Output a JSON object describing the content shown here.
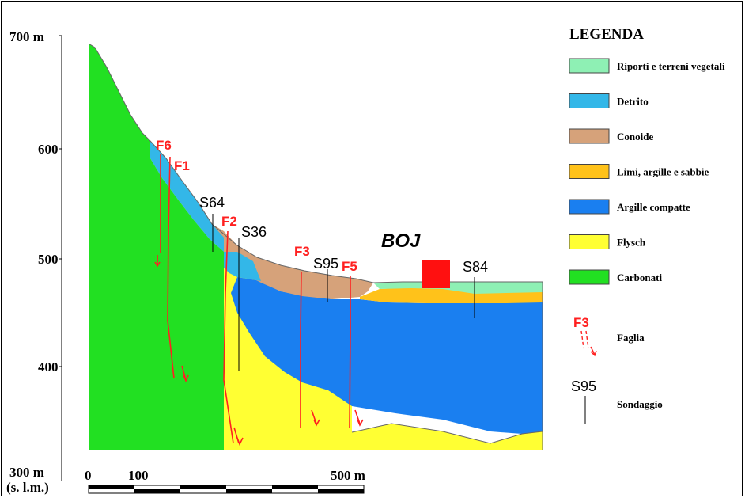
{
  "axis": {
    "y_top": "700 m",
    "y_600": "600",
    "y_500": "500",
    "y_400": "400",
    "y_bottom": "300 m",
    "y_unit": "(s. l.m.)"
  },
  "scale_bar": {
    "label_0": "0",
    "label_100": "100",
    "label_500": "500 m"
  },
  "faults": {
    "f1": "F1",
    "f2": "F2",
    "f3": "F3",
    "f5": "F5",
    "f6": "F6"
  },
  "boreholes": {
    "s64": "S64",
    "s36": "S36",
    "s95": "S95",
    "s84": "S84"
  },
  "site_label": "BOJ",
  "legend": {
    "title": "LEGENDA",
    "items": [
      {
        "label": "Riporti e terreni vegetali",
        "color": "#8ef0b4"
      },
      {
        "label": "Detrito",
        "color": "#33b7e8"
      },
      {
        "label": "Conoide",
        "color": "#d6a27a"
      },
      {
        "label": "Limi, argille e sabbie",
        "color": "#ffc21a"
      },
      {
        "label": "Argille compatte",
        "color": "#1a7ff0"
      },
      {
        "label": "Flysch",
        "color": "#ffff33"
      },
      {
        "label": "Carbonati",
        "color": "#22e022"
      }
    ],
    "fault_symbol": "F3",
    "fault_label": "Faglia",
    "borehole_symbol": "S95",
    "borehole_label": "Sondaggio"
  }
}
